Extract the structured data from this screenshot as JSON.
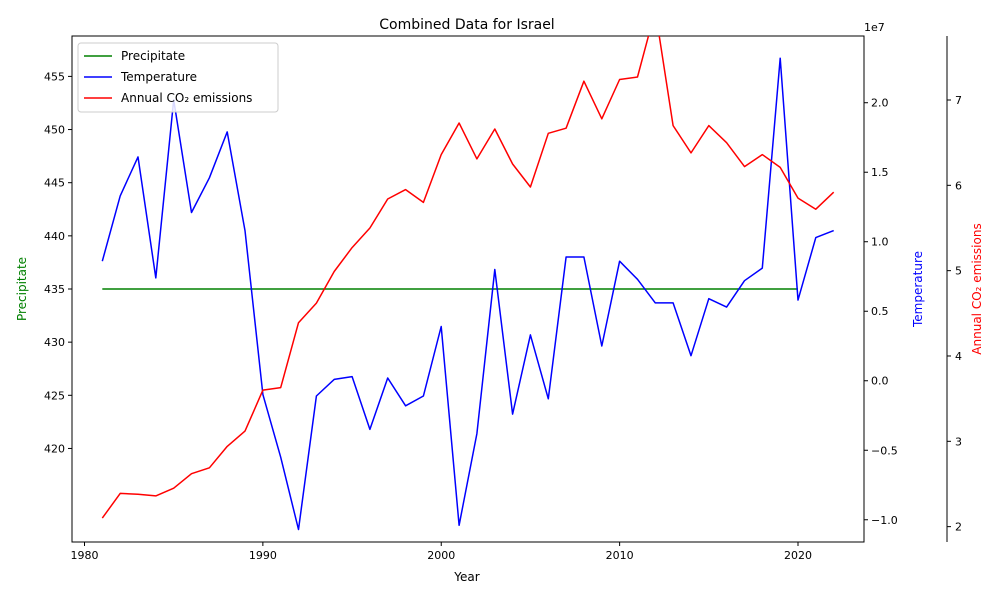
{
  "chart_data": {
    "type": "line",
    "title": "Combined Data for Israel",
    "xlabel": "Year",
    "x_ticks": [
      1980,
      1990,
      2000,
      2010,
      2020
    ],
    "xlim": [
      1979.3,
      2023.7
    ],
    "legend_position": "top-left",
    "axes": {
      "left": {
        "label": "Precipitate",
        "color": "#008000",
        "ylim": [
          411.2,
          458.8
        ],
        "ticks": [
          420,
          425,
          430,
          435,
          440,
          445,
          450,
          455
        ]
      },
      "right1": {
        "label": "Temperature",
        "color": "#0000ff",
        "offset_text": "1e7",
        "ylim": [
          -1.16,
          2.48
        ],
        "ticks": [
          -1.0,
          -0.5,
          0.0,
          0.5,
          1.0,
          1.5,
          2.0
        ],
        "tick_labels": [
          "−1.0",
          "−0.5",
          "0.0",
          "0.5",
          "1.0",
          "1.5",
          "2.0"
        ]
      },
      "right2": {
        "label": "Annual CO₂ emissions",
        "color": "#ff0000",
        "ylim": [
          1.82,
          7.75
        ],
        "ticks": [
          2,
          3,
          4,
          5,
          6,
          7
        ]
      }
    },
    "x": [
      1981,
      1982,
      1983,
      1984,
      1985,
      1986,
      1987,
      1988,
      1989,
      1990,
      1991,
      1992,
      1993,
      1994,
      1995,
      1996,
      1997,
      1998,
      1999,
      2000,
      2001,
      2002,
      2003,
      2004,
      2005,
      2006,
      2007,
      2008,
      2009,
      2010,
      2011,
      2012,
      2013,
      2014,
      2015,
      2016,
      2017,
      2018,
      2019,
      2020,
      2021,
      2022
    ],
    "series": [
      {
        "name": "Precipitate",
        "axis": "left",
        "color": "#008000",
        "x": [
          1981,
          2020
        ],
        "values": [
          435,
          435
        ]
      },
      {
        "name": "Temperature",
        "axis": "right1",
        "color": "#0000ff",
        "values": [
          0.86,
          1.33,
          1.61,
          0.74,
          2.02,
          1.21,
          1.46,
          1.79,
          1.08,
          -0.1,
          -0.55,
          -1.07,
          -0.11,
          0.01,
          0.03,
          -0.35,
          0.02,
          -0.18,
          -0.11,
          0.39,
          -1.04,
          -0.38,
          0.8,
          -0.24,
          0.33,
          -0.13,
          0.89,
          0.89,
          0.25,
          0.86,
          0.73,
          0.56,
          0.56,
          0.18,
          0.59,
          0.53,
          0.72,
          0.81,
          2.32,
          0.58,
          1.03,
          1.08
        ]
      },
      {
        "name": "Annual CO₂ emissions",
        "axis": "right2",
        "color": "#ff0000",
        "values": [
          2.1,
          2.39,
          2.38,
          2.36,
          2.45,
          2.62,
          2.69,
          2.94,
          3.12,
          3.6,
          3.63,
          4.39,
          4.62,
          4.99,
          5.27,
          5.5,
          5.84,
          5.95,
          5.8,
          6.36,
          6.73,
          6.31,
          6.66,
          6.25,
          5.98,
          6.61,
          6.67,
          7.22,
          6.78,
          7.24,
          7.27,
          8.05,
          6.7,
          6.38,
          6.7,
          6.5,
          6.22,
          6.36,
          6.21,
          5.85,
          5.72,
          5.92
        ]
      }
    ]
  }
}
